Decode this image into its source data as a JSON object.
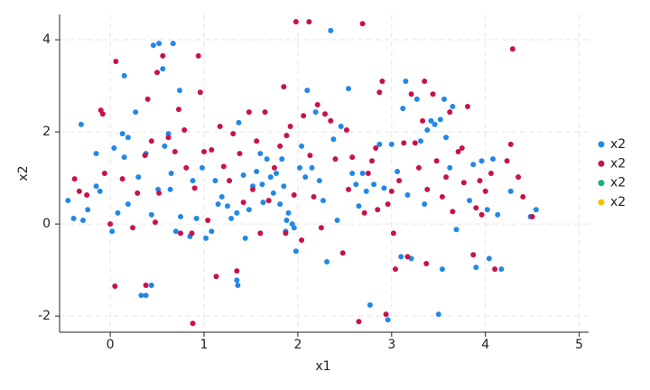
{
  "chart_data": {
    "type": "scatter",
    "xlabel": "x1",
    "ylabel": "x2",
    "xlim": [
      -0.54,
      5.1
    ],
    "ylim": [
      -2.35,
      4.55
    ],
    "xticks": [
      0,
      1,
      2,
      3,
      4,
      5
    ],
    "yticks": [
      -2,
      0,
      2,
      4
    ],
    "grid": true,
    "legend": "right",
    "series": [
      {
        "name": "x2",
        "color": "#2288e8",
        "x": [
          -0.45,
          -0.39,
          -0.31,
          -0.29,
          -0.24,
          -0.15,
          -0.15,
          -0.11,
          0.02,
          0.04,
          0.13,
          0.15,
          0.19,
          0.08,
          0.19,
          0.15,
          0.27,
          0.3,
          0.33,
          0.38,
          0.38,
          0.44,
          0.44,
          0.46,
          0.52,
          0.51,
          0.56,
          0.58,
          0.62,
          0.64,
          0.67,
          0.65,
          0.7,
          0.74,
          0.75,
          0.85,
          0.88,
          0.92,
          0.98,
          1.02,
          1.08,
          1.12,
          1.15,
          1.19,
          1.25,
          1.29,
          1.35,
          1.36,
          1.35,
          1.37,
          1.42,
          1.44,
          1.48,
          1.52,
          1.56,
          1.6,
          1.62,
          1.63,
          1.67,
          1.71,
          1.74,
          1.77,
          1.81,
          1.83,
          1.85,
          1.87,
          1.88,
          1.9,
          1.94,
          1.96,
          1.98,
          2.02,
          2.04,
          2.08,
          2.1,
          2.15,
          2.19,
          2.23,
          2.27,
          2.31,
          2.35,
          2.38,
          2.42,
          2.46,
          2.54,
          2.58,
          2.62,
          2.65,
          2.69,
          2.73,
          2.77,
          2.81,
          2.87,
          2.92,
          2.96,
          3.0,
          3.06,
          3.1,
          3.12,
          3.15,
          3.17,
          3.21,
          3.27,
          3.31,
          3.35,
          3.38,
          3.42,
          3.46,
          3.5,
          3.52,
          3.54,
          3.56,
          3.58,
          3.62,
          3.65,
          3.69,
          3.83,
          3.87,
          3.9,
          3.96,
          4.02,
          4.04,
          4.08,
          4.13,
          4.17,
          4.27,
          4.54,
          4.48
        ],
        "values": [
          0.51,
          0.12,
          2.16,
          0.08,
          0.31,
          1.53,
          0.82,
          0.71,
          -0.16,
          1.65,
          1.96,
          1.45,
          1.88,
          0.24,
          0.43,
          3.22,
          2.43,
          1.02,
          -1.55,
          -1.55,
          1.53,
          -1.33,
          0.2,
          3.88,
          3.92,
          0.75,
          3.37,
          1.69,
          1.96,
          0.75,
          3.92,
          1.1,
          -0.16,
          2.9,
          0.16,
          -0.27,
          0.94,
          0.12,
          1.22,
          -0.31,
          -0.16,
          0.94,
          0.43,
          0.59,
          0.39,
          0.12,
          0.24,
          -1.33,
          -1.22,
          2.2,
          1.06,
          -0.31,
          0.31,
          0.82,
          1.14,
          1.53,
          0.86,
          0.47,
          1.41,
          1.02,
          0.67,
          1.1,
          0.43,
          1.41,
          0.82,
          -0.16,
          0.08,
          0.24,
          0.0,
          -0.08,
          -0.59,
          1.22,
          1.69,
          1.02,
          2.9,
          1.22,
          2.43,
          0.94,
          0.51,
          -0.82,
          4.2,
          1.84,
          0.08,
          2.12,
          2.94,
          1.1,
          0.86,
          0.39,
          1.1,
          0.71,
          -1.76,
          0.86,
          1.73,
          0.78,
          -2.08,
          1.73,
          1.14,
          -0.71,
          2.51,
          3.1,
          0.63,
          -0.75,
          2.71,
          1.8,
          0.43,
          2.04,
          2.24,
          2.16,
          -1.96,
          2.27,
          -0.98,
          2.71,
          1.88,
          1.22,
          2.55,
          -0.12,
          0.51,
          1.29,
          -0.94,
          1.37,
          0.31,
          -0.75,
          1.41,
          0.2,
          -0.98,
          0.71,
          0.31,
          0.16
        ]
      },
      {
        "name": "x2",
        "color": "#c8124a",
        "x": [
          -0.38,
          -0.33,
          -0.25,
          -0.1,
          -0.08,
          -0.06,
          0,
          0.05,
          0.06,
          0.13,
          0.24,
          0.29,
          0.37,
          0.38,
          0.4,
          0.44,
          0.48,
          0.5,
          0.52,
          0.56,
          0.62,
          0.69,
          0.73,
          0.75,
          0.79,
          0.81,
          0.87,
          0.88,
          0.9,
          0.94,
          0.96,
          1.0,
          1.04,
          1.08,
          1.13,
          1.17,
          1.21,
          1.27,
          1.31,
          1.35,
          1.38,
          1.42,
          1.48,
          1.52,
          1.56,
          1.6,
          1.65,
          1.69,
          1.75,
          1.81,
          1.85,
          1.87,
          1.88,
          1.92,
          1.96,
          1.98,
          2.04,
          2.06,
          2.12,
          2.13,
          2.17,
          2.21,
          2.25,
          2.29,
          2.35,
          2.4,
          2.48,
          2.52,
          2.54,
          2.58,
          2.65,
          2.69,
          2.71,
          2.75,
          2.79,
          2.83,
          2.85,
          2.87,
          2.9,
          2.94,
          2.96,
          3.0,
          3.02,
          3.04,
          3.08,
          3.13,
          3.17,
          3.21,
          3.25,
          3.29,
          3.33,
          3.35,
          3.37,
          3.38,
          3.44,
          3.48,
          3.54,
          3.58,
          3.62,
          3.65,
          3.71,
          3.75,
          3.77,
          3.81,
          3.87,
          3.9,
          3.94,
          3.96,
          4.0,
          4.06,
          4.1,
          4.23,
          4.27,
          4.29,
          4.35,
          4.4,
          4.5
        ],
        "values": [
          0.98,
          0.71,
          0.63,
          2.47,
          2.39,
          1.1,
          0,
          -1.35,
          3.53,
          0.98,
          -0.08,
          0.67,
          1.49,
          -1.33,
          2.71,
          1.8,
          0.04,
          3.29,
          0.67,
          3.65,
          1.88,
          1.57,
          2.49,
          -0.2,
          2.04,
          1.22,
          -0.2,
          -2.16,
          0.78,
          3.65,
          2.86,
          1.57,
          0.08,
          1.61,
          -1.14,
          2.12,
          1.25,
          0.94,
          1.96,
          -1.02,
          1.53,
          0.47,
          2.43,
          0.75,
          1.8,
          -0.2,
          2.43,
          0.51,
          1.22,
          1.69,
          2.98,
          -0.2,
          1.92,
          2.12,
          0.63,
          4.39,
          -0.35,
          2.35,
          4.39,
          1.49,
          0.59,
          2.59,
          -0.08,
          2.39,
          2.24,
          1.41,
          -0.63,
          2.04,
          0.75,
          1.45,
          -2.12,
          4.35,
          0.24,
          1.1,
          1.37,
          1.65,
          0.31,
          2.86,
          3.1,
          -1.96,
          0.43,
          0.71,
          -0.2,
          -0.98,
          0.94,
          1.76,
          -0.71,
          2.82,
          1.76,
          1.22,
          2.24,
          3.1,
          -0.86,
          0.75,
          2.82,
          1.37,
          0.59,
          1.02,
          2.43,
          0.27,
          1.57,
          1.65,
          0.9,
          2.55,
          -0.67,
          0.35,
          0.94,
          0.2,
          0.71,
          1.1,
          -0.98,
          1.37,
          1.73,
          3.8,
          1.02,
          0.59,
          0.16
        ]
      },
      {
        "name": "x2",
        "color": "#16b07a",
        "x": [],
        "values": []
      },
      {
        "name": "x2",
        "color": "#f5c400",
        "x": [],
        "values": []
      }
    ]
  }
}
